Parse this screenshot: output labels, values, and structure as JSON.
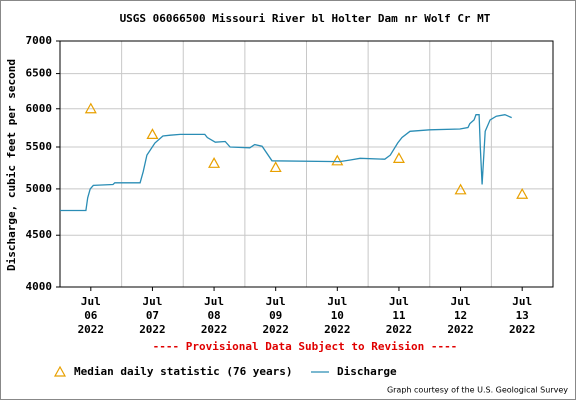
{
  "chart_data": {
    "type": "line",
    "title": "USGS 06066500 Missouri River bl Holter Dam nr Wolf Cr MT",
    "ylabel": "Discharge, cubic feet per second",
    "note": "---- Provisional Data Subject to Revision ----",
    "credit": "Graph courtesy of the U.S. Geological Survey",
    "xlim": [
      6,
      14
    ],
    "xticks": [
      {
        "value": 6.5,
        "label": "Jul\n06\n2022"
      },
      {
        "value": 7.5,
        "label": "Jul\n07\n2022"
      },
      {
        "value": 8.5,
        "label": "Jul\n08\n2022"
      },
      {
        "value": 9.5,
        "label": "Jul\n09\n2022"
      },
      {
        "value": 10.5,
        "label": "Jul\n10\n2022"
      },
      {
        "value": 11.5,
        "label": "Jul\n11\n2022"
      },
      {
        "value": 12.5,
        "label": "Jul\n12\n2022"
      },
      {
        "value": 13.5,
        "label": "Jul\n13\n2022"
      }
    ],
    "xgrid": [
      7,
      8,
      9,
      10,
      11,
      12,
      13
    ],
    "ylim": [
      4000,
      7000
    ],
    "yticks": [
      4000,
      4500,
      5000,
      5500,
      6000,
      6500,
      7000
    ],
    "log_y": true,
    "grid": true,
    "series": [
      {
        "name": "Median daily statistic (76 years)",
        "color": "#e8a000",
        "marker": "triangle",
        "x": [
          6.5,
          7.5,
          8.5,
          9.5,
          10.5,
          11.5,
          12.5,
          13.5
        ],
        "values": [
          6000,
          5660,
          5300,
          5250,
          5330,
          5360,
          4990,
          4940
        ]
      },
      {
        "name": "Discharge",
        "color": "#2a8db5",
        "marker": "line",
        "x": [
          6.0,
          6.42,
          6.45,
          6.49,
          6.54,
          6.86,
          6.89,
          7.3,
          7.35,
          7.41,
          7.54,
          7.67,
          7.79,
          7.95,
          8.35,
          8.39,
          8.52,
          8.68,
          8.76,
          9.08,
          9.16,
          9.28,
          9.44,
          10.54,
          10.71,
          10.87,
          11.27,
          11.36,
          11.48,
          11.55,
          11.68,
          12.0,
          12.49,
          12.62,
          12.65,
          12.72,
          12.75,
          12.8,
          12.82,
          12.85,
          12.9,
          12.98,
          13.08,
          13.22,
          13.33
        ],
        "values": [
          4760,
          4760,
          4900,
          5000,
          5040,
          5050,
          5070,
          5070,
          5200,
          5400,
          5550,
          5640,
          5650,
          5660,
          5660,
          5620,
          5560,
          5570,
          5500,
          5490,
          5530,
          5510,
          5330,
          5320,
          5340,
          5360,
          5350,
          5400,
          5550,
          5620,
          5700,
          5720,
          5730,
          5750,
          5800,
          5850,
          5920,
          5920,
          5500,
          5050,
          5700,
          5850,
          5900,
          5920,
          5880
        ]
      }
    ]
  }
}
